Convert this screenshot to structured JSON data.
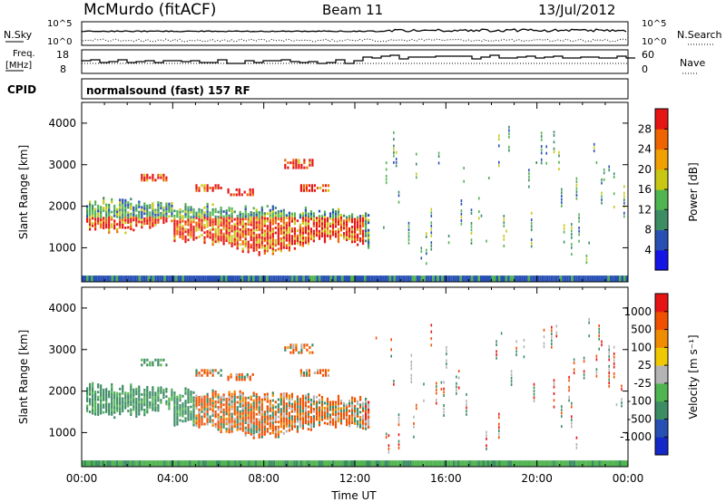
{
  "header": {
    "station": "McMurdo (fitACF)",
    "beam": "Beam 11",
    "date": "13/Jul/2012",
    "cpid_label": "CPID",
    "cpid_value": "normalsound (fast) 157 RF"
  },
  "top_panels": {
    "nsky_label": "N.Sky",
    "nsky_ticks": [
      "10^5",
      "10^0"
    ],
    "nsearch_label": "N.Search",
    "nsearch_ticks": [
      "10^5",
      "10^0"
    ],
    "freq_label_1": "Freq.",
    "freq_label_2": "[MHz]",
    "freq_ticks": [
      "18",
      "8"
    ],
    "nave_label": "Nave",
    "nave_ticks": [
      "60",
      "0"
    ]
  },
  "chart_data": [
    {
      "type": "heatmap",
      "name": "power",
      "ylabel": "Slant Range [km]",
      "ylim": [
        180,
        4500
      ],
      "yticks": [
        "1000",
        "2000",
        "3000",
        "4000"
      ],
      "xlim": [
        0,
        24
      ],
      "colorbar": {
        "label": "Power [dB]",
        "ticks": [
          "4",
          "8",
          "12",
          "16",
          "20",
          "24",
          "28"
        ],
        "colors": [
          "#1414e6",
          "#2850b4",
          "#3c8c64",
          "#50b450",
          "#c8c814",
          "#f0a000",
          "#f06400",
          "#e61414"
        ]
      }
    },
    {
      "type": "heatmap",
      "name": "velocity",
      "ylabel": "Slant Range [km]",
      "ylim": [
        180,
        4500
      ],
      "yticks": [
        "1000",
        "2000",
        "3000",
        "4000"
      ],
      "xlim": [
        0,
        24
      ],
      "colorbar": {
        "label": "Velocity [m s⁻¹]",
        "ticks": [
          "1000",
          "500",
          "100",
          "25",
          "-25",
          "-100",
          "-500",
          "-1000"
        ],
        "colors": [
          "#1428c8",
          "#2850b4",
          "#3c8c64",
          "#50b450",
          "#b4b4b4",
          "#f0c800",
          "#f08c00",
          "#f05000",
          "#e61414"
        ]
      },
      "xlabel": "Time UT",
      "xticks": [
        "00:00",
        "04:00",
        "08:00",
        "12:00",
        "16:00",
        "20:00",
        "00:00"
      ]
    }
  ]
}
